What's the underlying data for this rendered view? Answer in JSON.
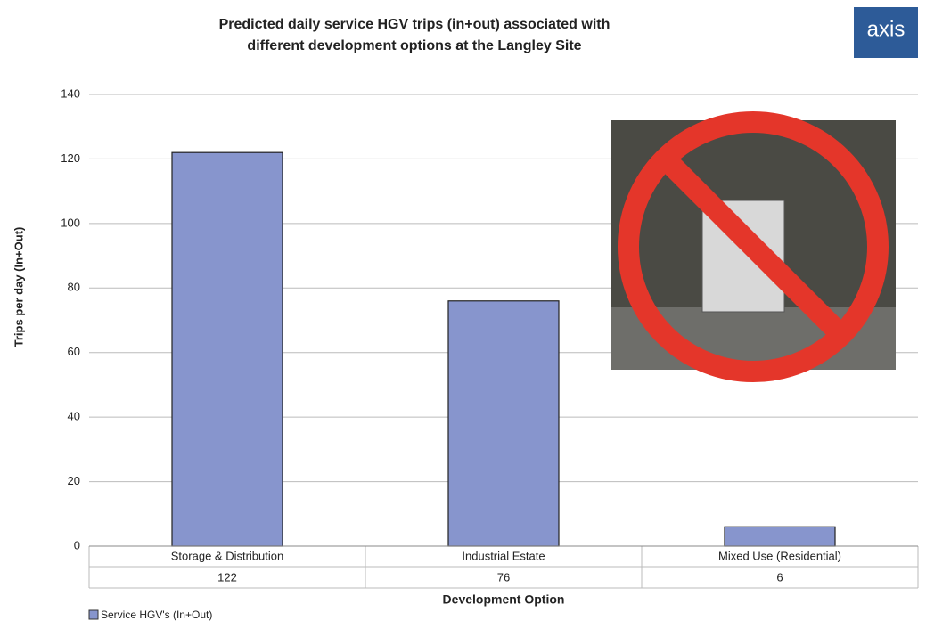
{
  "chart_data": {
    "type": "bar",
    "title": [
      "Predicted daily service HGV trips (in+out) associated with",
      "different development options at the Langley Site"
    ],
    "logo": "axis",
    "x_label": "Development Option",
    "y_label": "Trips per day (In+Out)",
    "categories": [
      "Storage & Distribution",
      "Industrial Estate",
      "Mixed Use (Residential)"
    ],
    "series": [
      {
        "name": "Service HGV's (In+Out)",
        "color": "#8795cd",
        "values": [
          122,
          76,
          6
        ]
      }
    ],
    "ylim": [
      0,
      140
    ],
    "yticks": [
      0,
      20,
      40,
      60,
      80,
      100,
      120,
      140
    ],
    "grid": true
  }
}
